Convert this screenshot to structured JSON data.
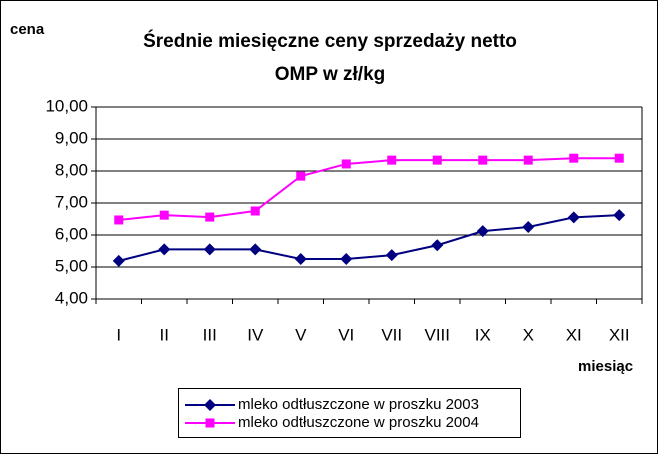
{
  "chart_data": {
    "type": "line",
    "title": [
      "Średnie miesięczne ceny sprzedaży netto",
      "OMP w zł/kg"
    ],
    "y_label": "cena",
    "x_label": "miesiąc",
    "categories": [
      "I",
      "II",
      "III",
      "IV",
      "V",
      "VI",
      "VII",
      "VIII",
      "IX",
      "X",
      "XI",
      "XII"
    ],
    "series": [
      {
        "name": "mleko odtłuszczone w  proszku 2003",
        "color": "#000080",
        "marker": "diamond",
        "values": [
          5.19,
          5.55,
          5.55,
          5.55,
          5.25,
          5.25,
          5.37,
          5.68,
          6.12,
          6.25,
          6.55,
          6.62
        ]
      },
      {
        "name": "mleko odtłuszczone w  proszku 2004",
        "color": "#ff00ff",
        "marker": "square",
        "values": [
          6.47,
          6.62,
          6.56,
          6.75,
          7.84,
          8.22,
          8.34,
          8.34,
          8.34,
          8.34,
          8.4,
          8.4
        ]
      }
    ],
    "ylim": [
      4,
      10
    ],
    "yticks": [
      {
        "value": 4,
        "label": "4,00"
      },
      {
        "value": 5,
        "label": "5,00"
      },
      {
        "value": 6,
        "label": "6,00"
      },
      {
        "value": 7,
        "label": "7,00"
      },
      {
        "value": 8,
        "label": "8,00"
      },
      {
        "value": 9,
        "label": "9,00"
      },
      {
        "value": 10,
        "label": "10,00"
      }
    ],
    "grid": true
  }
}
